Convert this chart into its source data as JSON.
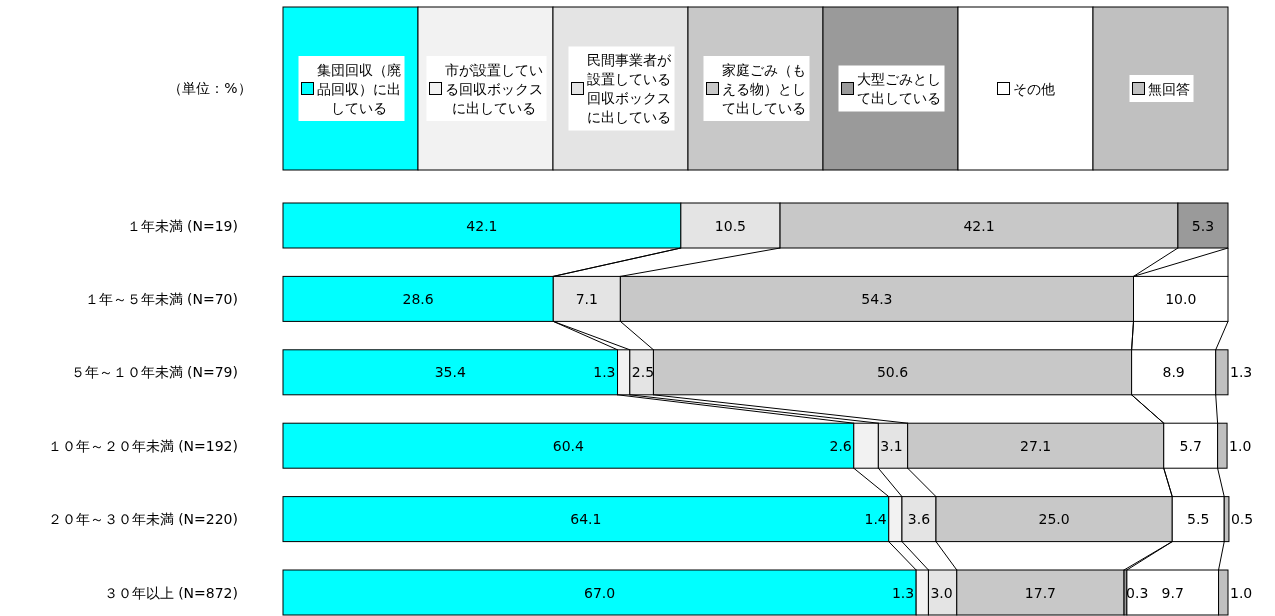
{
  "chart_data": {
    "type": "bar",
    "orientation": "horizontal",
    "stacked": true,
    "legend": "top",
    "tick_labels": "y",
    "xlim": [
      0,
      100
    ],
    "annotations": [
      "（単位：%）"
    ],
    "categories": [
      "１年未満 (N=19)",
      "１年～５年未満 (N=70)",
      "５年～１０年未満 (N=79)",
      "１０年～２０年未満 (N=192)",
      "２０年～３０年未満 (N=220)",
      "３０年以上 (N=872)"
    ],
    "series": [
      {
        "name": "集団回収（廃品回収）に出している",
        "color": "#00ffff",
        "values": [
          42.1,
          28.6,
          35.4,
          60.4,
          64.1,
          67.0
        ],
        "value_labels": [
          "42.1",
          "28.6",
          "35.4",
          "60.4",
          "64.1",
          "67.0"
        ]
      },
      {
        "name": "市が設置している回収ボックスに出している",
        "color": "#f2f2f2",
        "values": [
          null,
          null,
          1.3,
          2.6,
          1.4,
          1.3
        ],
        "value_labels": [
          null,
          null,
          "1.3",
          "2.6",
          "1.4",
          "1.3"
        ]
      },
      {
        "name": "民間事業者が設置している回収ボックスに出している",
        "color": "#e4e4e4",
        "values": [
          10.5,
          7.1,
          2.5,
          3.1,
          3.6,
          3.0
        ],
        "value_labels": [
          "10.5",
          "7.1",
          "2.5",
          "3.1",
          "3.6",
          "3.0"
        ]
      },
      {
        "name": "家庭ごみ（もえる物）として出している",
        "color": "#c8c8c8",
        "values": [
          42.1,
          54.3,
          50.6,
          27.1,
          25.0,
          17.7
        ],
        "value_labels": [
          "42.1",
          "54.3",
          "50.6",
          "27.1",
          "25.0",
          "17.7"
        ]
      },
      {
        "name": "大型ごみとして出している",
        "color": "#9a9a9a",
        "values": [
          5.3,
          null,
          null,
          null,
          null,
          0.3
        ],
        "value_labels": [
          "5.3",
          null,
          null,
          null,
          null,
          "0.3"
        ]
      },
      {
        "name": "その他",
        "color": "#ffffff",
        "values": [
          null,
          10.0,
          8.9,
          5.7,
          5.5,
          9.7
        ],
        "value_labels": [
          null,
          "10.0",
          "8.9",
          "5.7",
          "5.5",
          "9.7"
        ]
      },
      {
        "name": "無回答",
        "color": "#c0c0c0",
        "values": [
          null,
          null,
          1.3,
          1.0,
          0.5,
          1.0
        ],
        "value_labels": [
          null,
          null,
          "1.3",
          "1.0",
          "0.5",
          "1.0"
        ]
      }
    ]
  }
}
